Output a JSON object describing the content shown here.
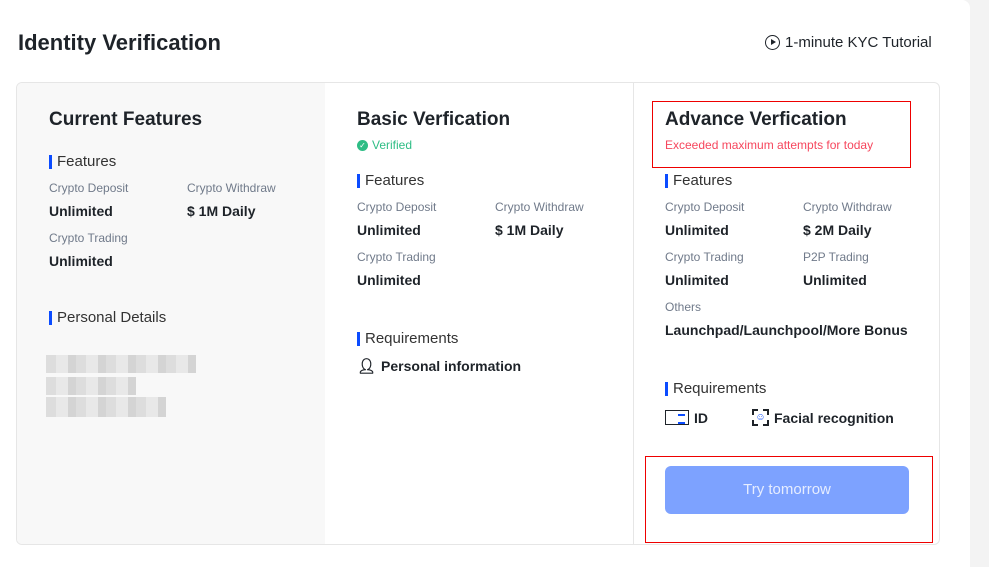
{
  "page": {
    "title": "Identity Verification",
    "tutorial": "1-minute KYC Tutorial"
  },
  "current": {
    "title": "Current Features",
    "features_label": "Features",
    "items": [
      {
        "label": "Crypto Deposit",
        "value": "Unlimited"
      },
      {
        "label": "Crypto Withdraw",
        "value": "$ 1M Daily"
      },
      {
        "label": "Crypto Trading",
        "value": "Unlimited"
      }
    ],
    "personal_label": "Personal Details"
  },
  "basic": {
    "title": "Basic Verfication",
    "status": "Verified",
    "features_label": "Features",
    "items": [
      {
        "label": "Crypto Deposit",
        "value": "Unlimited"
      },
      {
        "label": "Crypto Withdraw",
        "value": "$ 1M Daily"
      },
      {
        "label": "Crypto Trading",
        "value": "Unlimited"
      }
    ],
    "requirements_label": "Requirements",
    "requirements": [
      "Personal information"
    ]
  },
  "advance": {
    "title": "Advance Verfication",
    "status": "Exceeded maximum attempts for today",
    "features_label": "Features",
    "items": [
      {
        "label": "Crypto Deposit",
        "value": "Unlimited"
      },
      {
        "label": "Crypto Withdraw",
        "value": "$ 2M Daily"
      },
      {
        "label": "Crypto Trading",
        "value": "Unlimited"
      },
      {
        "label": "P2P Trading",
        "value": "Unlimited"
      }
    ],
    "others_label": "Others",
    "others_value": "Launchpad/Launchpool/More Bonus",
    "requirements_label": "Requirements",
    "requirements": [
      "ID",
      "Facial recognition"
    ],
    "button": "Try tomorrow"
  },
  "colors": {
    "accent": "#0b4cff",
    "verified": "#2ebd85",
    "error": "#f6465d",
    "button": "#7da2ff"
  }
}
